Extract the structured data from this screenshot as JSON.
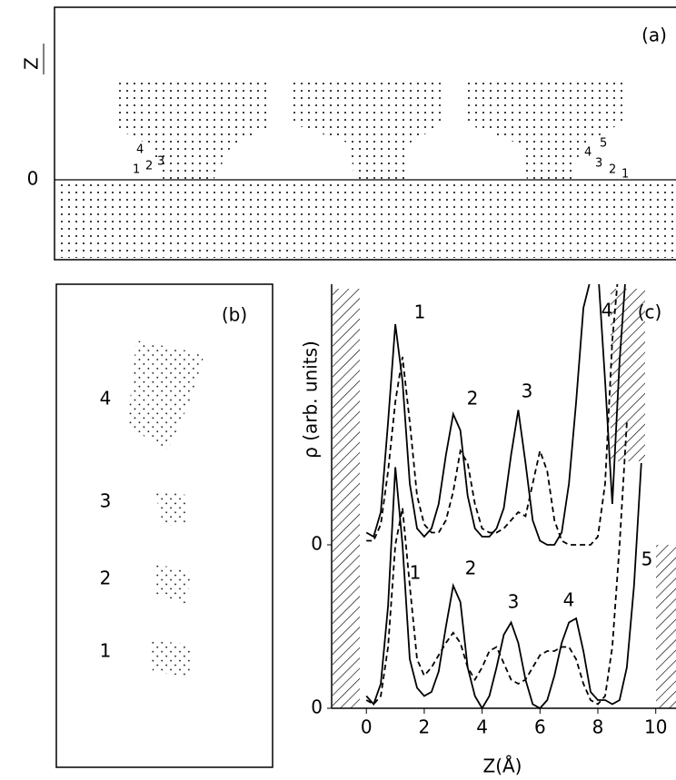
{
  "panel_a": {
    "label": "(a)",
    "axis_label": "Z",
    "zero_label": "0",
    "left_labels": [
      "4",
      "1",
      "2",
      "3"
    ],
    "right_labels": [
      "4",
      "5",
      "3",
      "2",
      "1"
    ]
  },
  "panel_b": {
    "label": "(b)",
    "layer_labels": [
      "4",
      "3",
      "2",
      "1"
    ]
  },
  "chart_data": {
    "type": "line",
    "label": "(c)",
    "x_label": "Z(Å)",
    "y_label": "ρ (arb. units)",
    "upper_peak_labels": [
      "1",
      "2",
      "3",
      "4"
    ],
    "lower_peak_labels": [
      "1",
      "2",
      "3",
      "4",
      "5"
    ],
    "x": [
      0,
      0.25,
      0.5,
      0.75,
      1,
      1.25,
      1.5,
      1.75,
      2,
      2.25,
      2.5,
      2.75,
      3,
      3.25,
      3.5,
      3.75,
      4,
      4.25,
      4.5,
      4.75,
      5,
      5.25,
      5.5,
      5.75,
      6,
      6.25,
      6.5,
      6.75,
      7,
      7.25,
      7.5,
      7.75,
      8,
      8.25,
      8.5,
      8.75,
      9,
      9.25,
      9.5
    ],
    "xlim": [
      -1.2,
      10.7
    ],
    "xticks": [
      0,
      2,
      4,
      6,
      8,
      10
    ],
    "ylim": [
      0,
      10
    ],
    "yticks": [
      0
    ],
    "y2lim": [
      -4,
      6
    ],
    "y2ticks": [
      0
    ],
    "series": [
      {
        "color": "#000000",
        "line_style": "solid",
        "axis": "y2",
        "values": [
          0.3,
          0.2,
          0.8,
          3.0,
          5.4,
          4.0,
          1.5,
          0.4,
          0.2,
          0.4,
          1.0,
          2.2,
          3.2,
          2.8,
          1.2,
          0.4,
          0.2,
          0.2,
          0.4,
          0.9,
          2.2,
          3.3,
          2.0,
          0.6,
          0.1,
          0,
          0,
          0.3,
          1.5,
          3.5,
          5.8,
          6.5,
          6.8,
          4.0,
          1.0,
          4.5,
          7.0,
          null,
          null
        ]
      },
      {
        "color": "#000000",
        "line_style": "dashed",
        "axis": "y2",
        "values": [
          0.1,
          0.1,
          0.5,
          1.8,
          3.5,
          4.6,
          3.0,
          1.2,
          0.5,
          0.3,
          0.3,
          0.6,
          1.3,
          2.3,
          2.0,
          1.0,
          0.4,
          0.3,
          0.3,
          0.4,
          0.6,
          0.8,
          0.7,
          1.5,
          2.3,
          1.8,
          0.6,
          0.1,
          0,
          0,
          0,
          0,
          0.2,
          1.5,
          5.0,
          7.0,
          null,
          null,
          null
        ]
      },
      {
        "color": "#000000",
        "line_style": "solid",
        "values": [
          0.3,
          0.1,
          0.6,
          2.5,
          5.9,
          4.0,
          1.2,
          0.5,
          0.3,
          0.4,
          0.9,
          2.0,
          3.0,
          2.6,
          1.0,
          0.3,
          0,
          0.3,
          1.0,
          1.8,
          2.1,
          1.6,
          0.7,
          0.1,
          0,
          0.2,
          0.8,
          1.6,
          2.1,
          2.2,
          1.4,
          0.4,
          0.2,
          0.2,
          0.1,
          0.2,
          1.0,
          3.0,
          6.0
        ]
      },
      {
        "color": "#000000",
        "line_style": "dashed",
        "values": [
          0.2,
          0.1,
          0.3,
          1.5,
          4.0,
          4.9,
          3.0,
          1.2,
          0.8,
          1.0,
          1.3,
          1.6,
          1.85,
          1.6,
          1.0,
          0.7,
          1.0,
          1.4,
          1.5,
          1.1,
          0.7,
          0.6,
          0.7,
          1.0,
          1.3,
          1.4,
          1.4,
          1.5,
          1.5,
          1.2,
          0.6,
          0.2,
          0.1,
          0.3,
          1.5,
          4.0,
          7.0,
          null,
          null
        ]
      }
    ]
  }
}
